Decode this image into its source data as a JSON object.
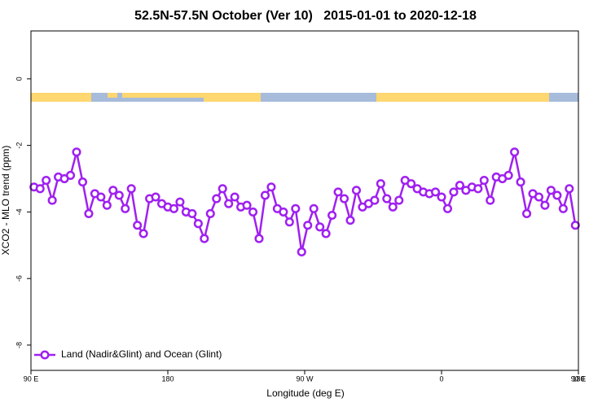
{
  "chart_data": {
    "type": "line",
    "title": "52.5N-57.5N October (Ver 10)   2015-01-01 to 2020-12-18",
    "x_label": "Longitude (deg E)",
    "y_label": "XCO2 - MLO trend (ppm)",
    "xlim": [
      90,
      450
    ],
    "ylim": [
      -8.76,
      1.44
    ],
    "xticks": [
      {
        "value": 90,
        "label": "90 E"
      },
      {
        "value": 180,
        "label": "180"
      },
      {
        "value": 270,
        "label": "90 W"
      },
      {
        "value": 360,
        "label": "0"
      },
      {
        "value": 450,
        "label": "90 E"
      },
      {
        "value": 540,
        "label": "180"
      }
    ],
    "yticks": [
      0,
      -2,
      -4,
      -6,
      -8
    ],
    "legend_position": "bottom left",
    "series": [
      {
        "name": "Land (Nadir&Glint) and Ocean (Glint)",
        "color": "#a020f0",
        "x": [
          92,
          96,
          100,
          104,
          108,
          112,
          116,
          120,
          124,
          128,
          132,
          136,
          140,
          144,
          148,
          152,
          156,
          160,
          164,
          168,
          172,
          176,
          180,
          184,
          188,
          192,
          196,
          200,
          204,
          208,
          212,
          216,
          220,
          224,
          228,
          232,
          236,
          240,
          244,
          248,
          252,
          256,
          260,
          264,
          268,
          272,
          276,
          280,
          284,
          288,
          292,
          296,
          300,
          304,
          308,
          312,
          316,
          320,
          324,
          328,
          332,
          336,
          340,
          344,
          348,
          352,
          356,
          360,
          364,
          368,
          372,
          376,
          380,
          384,
          388,
          392,
          396,
          400,
          404,
          408,
          412,
          416,
          420,
          424,
          428,
          432,
          436,
          440,
          444,
          448
        ],
        "values": [
          -3.25,
          -3.3,
          -3.05,
          -3.65,
          -2.95,
          -3.0,
          -2.9,
          -2.2,
          -3.1,
          -4.05,
          -3.45,
          -3.55,
          -3.8,
          -3.35,
          -3.5,
          -3.9,
          -3.3,
          -4.4,
          -4.65,
          -3.6,
          -3.55,
          -3.75,
          -3.85,
          -3.9,
          -3.7,
          -4.0,
          -4.05,
          -4.35,
          -4.8,
          -4.05,
          -3.6,
          -3.3,
          -3.75,
          -3.55,
          -3.85,
          -3.8,
          -4.0,
          -4.8,
          -3.5,
          -3.25,
          -3.9,
          -4.0,
          -4.3,
          -3.9,
          -5.2,
          -4.4,
          -3.9,
          -4.45,
          -4.65,
          -4.1,
          -3.4,
          -3.6,
          -4.25,
          -3.35,
          -3.85,
          -3.75,
          -3.65,
          -3.15,
          -3.6,
          -3.85,
          -3.65,
          -3.05,
          -3.15,
          -3.3,
          -3.4,
          -3.45,
          -3.4,
          -3.55,
          -3.9,
          -3.4,
          -3.2,
          -3.35,
          -3.25,
          -3.3,
          -3.05,
          -3.65,
          -2.95,
          -3.0,
          -2.9,
          -2.2,
          -3.1,
          -4.05,
          -3.45,
          -3.55,
          -3.8,
          -3.35,
          -3.5,
          -3.9,
          -3.3,
          -4.4
        ]
      }
    ]
  }
}
